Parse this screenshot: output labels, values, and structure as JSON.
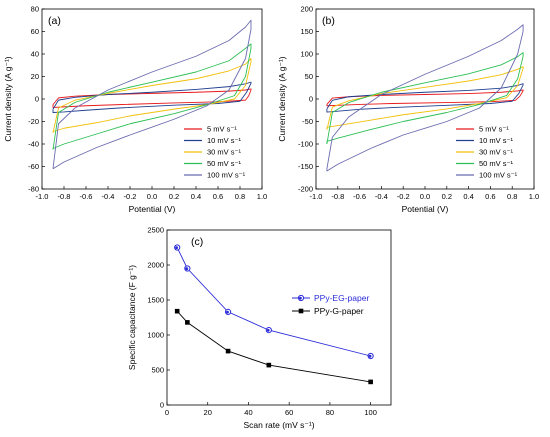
{
  "chart_data": [
    {
      "type": "line",
      "panel_label": "(a)",
      "xlabel": "Potential (V)",
      "ylabel": "Current density (A g⁻¹)",
      "xlim": [
        -1.0,
        1.0
      ],
      "ylim": [
        -80,
        80
      ],
      "xticks": [
        "-1.0",
        "-0.8",
        "-0.6",
        "-0.4",
        "-0.2",
        "0.0",
        "0.2",
        "0.4",
        "0.6",
        "0.8",
        "1.0"
      ],
      "yticks": [
        "-80",
        "-60",
        "-40",
        "-20",
        "0",
        "20",
        "40",
        "60",
        "80"
      ],
      "legend_position": "lower-right",
      "grid": false,
      "series": [
        {
          "name": "5 mV s⁻¹",
          "color": "#e8191b",
          "upper": [
            [
              -0.9,
              -5
            ],
            [
              -0.85,
              1
            ],
            [
              -0.7,
              2.5
            ],
            [
              -0.4,
              4
            ],
            [
              0,
              5
            ],
            [
              0.4,
              6
            ],
            [
              0.7,
              7
            ],
            [
              0.85,
              8
            ],
            [
              0.9,
              9
            ]
          ],
          "lower": [
            [
              0.9,
              8
            ],
            [
              0.88,
              3
            ],
            [
              0.85,
              -1
            ],
            [
              0.6,
              -2.5
            ],
            [
              0.2,
              -3.5
            ],
            [
              -0.3,
              -5
            ],
            [
              -0.6,
              -6
            ],
            [
              -0.8,
              -7
            ],
            [
              -0.9,
              -7.5
            ]
          ]
        },
        {
          "name": "10 mV s⁻¹",
          "color": "#1f3f8f",
          "upper": [
            [
              -0.9,
              -9
            ],
            [
              -0.85,
              -1
            ],
            [
              -0.7,
              1.5
            ],
            [
              -0.4,
              4
            ],
            [
              0,
              6
            ],
            [
              0.4,
              8.5
            ],
            [
              0.7,
              11
            ],
            [
              0.85,
              13.5
            ],
            [
              0.9,
              15
            ]
          ],
          "lower": [
            [
              0.9,
              14
            ],
            [
              0.86,
              6
            ],
            [
              0.8,
              -2
            ],
            [
              0.6,
              -4
            ],
            [
              0.2,
              -5.5
            ],
            [
              -0.3,
              -8
            ],
            [
              -0.6,
              -10
            ],
            [
              -0.8,
              -11.5
            ],
            [
              -0.9,
              -12
            ]
          ]
        },
        {
          "name": "30 mV s⁻¹",
          "color": "#f2c00c",
          "upper": [
            [
              -0.9,
              -30
            ],
            [
              -0.85,
              -8
            ],
            [
              -0.7,
              -1
            ],
            [
              -0.4,
              5
            ],
            [
              0,
              12
            ],
            [
              0.4,
              18
            ],
            [
              0.7,
              25
            ],
            [
              0.85,
              31
            ],
            [
              0.9,
              36
            ]
          ],
          "lower": [
            [
              0.9,
              33
            ],
            [
              0.85,
              12
            ],
            [
              0.75,
              0
            ],
            [
              0.5,
              -5
            ],
            [
              0.2,
              -9
            ],
            [
              -0.2,
              -15
            ],
            [
              -0.5,
              -21
            ],
            [
              -0.8,
              -26
            ],
            [
              -0.9,
              -29
            ]
          ]
        },
        {
          "name": "50 mV s⁻¹",
          "color": "#2dbf55",
          "upper": [
            [
              -0.9,
              -45
            ],
            [
              -0.85,
              -12
            ],
            [
              -0.7,
              -3
            ],
            [
              -0.4,
              6
            ],
            [
              0,
              15
            ],
            [
              0.4,
              24
            ],
            [
              0.7,
              34
            ],
            [
              0.85,
              45
            ],
            [
              0.9,
              49
            ]
          ],
          "lower": [
            [
              0.9,
              45
            ],
            [
              0.85,
              20
            ],
            [
              0.75,
              3
            ],
            [
              0.5,
              -5
            ],
            [
              0.2,
              -13
            ],
            [
              -0.2,
              -22
            ],
            [
              -0.5,
              -31
            ],
            [
              -0.8,
              -40
            ],
            [
              -0.9,
              -44
            ]
          ]
        },
        {
          "name": "100 mV s⁻¹",
          "color": "#6b6bb0",
          "upper": [
            [
              -0.9,
              -62
            ],
            [
              -0.85,
              -22
            ],
            [
              -0.7,
              -8
            ],
            [
              -0.4,
              8
            ],
            [
              0,
              24
            ],
            [
              0.4,
              38
            ],
            [
              0.7,
              52
            ],
            [
              0.85,
              64
            ],
            [
              0.9,
              70
            ]
          ],
          "lower": [
            [
              0.9,
              62
            ],
            [
              0.85,
              36
            ],
            [
              0.7,
              8
            ],
            [
              0.5,
              -6
            ],
            [
              0.2,
              -18
            ],
            [
              -0.2,
              -32
            ],
            [
              -0.5,
              -43
            ],
            [
              -0.8,
              -56
            ],
            [
              -0.9,
              -62
            ]
          ]
        }
      ]
    },
    {
      "type": "line",
      "panel_label": "(b)",
      "xlabel": "Potential (V)",
      "ylabel": "Current density (A g⁻¹)",
      "xlim": [
        -1.0,
        1.0
      ],
      "ylim": [
        -200,
        200
      ],
      "xticks": [
        "-1.0",
        "-0.8",
        "-0.6",
        "-0.4",
        "-0.2",
        "0.0",
        "0.2",
        "0.4",
        "0.6",
        "0.8",
        "1.0"
      ],
      "yticks": [
        "-200",
        "-150",
        "-100",
        "-50",
        "0",
        "50",
        "100",
        "150",
        "200"
      ],
      "legend_position": "lower-right",
      "grid": false,
      "series": [
        {
          "name": "5 mV s⁻¹",
          "color": "#e8191b",
          "upper": [
            [
              -0.9,
              -12
            ],
            [
              -0.85,
              2
            ],
            [
              -0.7,
              5
            ],
            [
              -0.4,
              8
            ],
            [
              0,
              10
            ],
            [
              0.4,
              12
            ],
            [
              0.7,
              15
            ],
            [
              0.85,
              18
            ],
            [
              0.9,
              20
            ]
          ],
          "lower": [
            [
              0.9,
              18
            ],
            [
              0.87,
              6
            ],
            [
              0.83,
              -3
            ],
            [
              0.6,
              -6
            ],
            [
              0.2,
              -8
            ],
            [
              -0.3,
              -10
            ],
            [
              -0.6,
              -12
            ],
            [
              -0.8,
              -14
            ],
            [
              -0.9,
              -15
            ]
          ]
        },
        {
          "name": "10 mV s⁻¹",
          "color": "#1f3f8f",
          "upper": [
            [
              -0.9,
              -22
            ],
            [
              -0.85,
              -3
            ],
            [
              -0.7,
              5
            ],
            [
              -0.4,
              10
            ],
            [
              0,
              15
            ],
            [
              0.4,
              19
            ],
            [
              0.7,
              24
            ],
            [
              0.85,
              30
            ],
            [
              0.9,
              34
            ]
          ],
          "lower": [
            [
              0.9,
              31
            ],
            [
              0.86,
              12
            ],
            [
              0.8,
              -5
            ],
            [
              0.6,
              -10
            ],
            [
              0.2,
              -14
            ],
            [
              -0.3,
              -19
            ],
            [
              -0.6,
              -23
            ],
            [
              -0.8,
              -27
            ],
            [
              -0.9,
              -29
            ]
          ]
        },
        {
          "name": "30 mV s⁻¹",
          "color": "#f2c00c",
          "upper": [
            [
              -0.9,
              -68
            ],
            [
              -0.85,
              -18
            ],
            [
              -0.7,
              -4
            ],
            [
              -0.4,
              12
            ],
            [
              0,
              26
            ],
            [
              0.4,
              40
            ],
            [
              0.7,
              54
            ],
            [
              0.85,
              66
            ],
            [
              0.9,
              72
            ]
          ],
          "lower": [
            [
              0.9,
              68
            ],
            [
              0.85,
              30
            ],
            [
              0.75,
              3
            ],
            [
              0.5,
              -10
            ],
            [
              0.2,
              -22
            ],
            [
              -0.2,
              -35
            ],
            [
              -0.5,
              -47
            ],
            [
              -0.8,
              -59
            ],
            [
              -0.9,
              -63
            ]
          ]
        },
        {
          "name": "50 mV s⁻¹",
          "color": "#2dbf55",
          "upper": [
            [
              -0.9,
              -100
            ],
            [
              -0.85,
              -30
            ],
            [
              -0.7,
              -8
            ],
            [
              -0.4,
              15
            ],
            [
              0,
              36
            ],
            [
              0.4,
              56
            ],
            [
              0.7,
              76
            ],
            [
              0.85,
              94
            ],
            [
              0.9,
              103
            ]
          ],
          "lower": [
            [
              0.9,
              95
            ],
            [
              0.85,
              45
            ],
            [
              0.75,
              8
            ],
            [
              0.5,
              -12
            ],
            [
              0.2,
              -30
            ],
            [
              -0.2,
              -50
            ],
            [
              -0.5,
              -68
            ],
            [
              -0.8,
              -87
            ],
            [
              -0.9,
              -94
            ]
          ]
        },
        {
          "name": "100 mV s⁻¹",
          "color": "#6b6bb0",
          "upper": [
            [
              -0.9,
              -155
            ],
            [
              -0.85,
              -85
            ],
            [
              -0.7,
              -40
            ],
            [
              -0.4,
              10
            ],
            [
              0,
              55
            ],
            [
              0.4,
              95
            ],
            [
              0.7,
              130
            ],
            [
              0.85,
              155
            ],
            [
              0.9,
              165
            ]
          ],
          "lower": [
            [
              0.9,
              150
            ],
            [
              0.85,
              100
            ],
            [
              0.7,
              25
            ],
            [
              0.5,
              -20
            ],
            [
              0.2,
              -50
            ],
            [
              -0.2,
              -80
            ],
            [
              -0.5,
              -110
            ],
            [
              -0.8,
              -145
            ],
            [
              -0.9,
              -160
            ]
          ]
        }
      ]
    },
    {
      "type": "line",
      "panel_label": "(c)",
      "xlabel": "Scan rate (mV s⁻¹)",
      "ylabel": "Specific capacitance (F g⁻¹)",
      "xlim": [
        0,
        110
      ],
      "ylim": [
        0,
        2500
      ],
      "xticks": [
        "0",
        "20",
        "40",
        "60",
        "80",
        "100"
      ],
      "yticks": [
        "0",
        "500",
        "1000",
        "1500",
        "2000",
        "2500"
      ],
      "legend_position": "right",
      "grid": false,
      "x": [
        5,
        10,
        30,
        50,
        100
      ],
      "series": [
        {
          "name": "PPy-EG-paper",
          "color": "#2b2bd9",
          "marker": "circle",
          "values": [
            2250,
            1950,
            1330,
            1070,
            700
          ]
        },
        {
          "name": "PPy-G-paper",
          "color": "#000000",
          "marker": "square",
          "values": [
            1340,
            1180,
            770,
            570,
            330
          ]
        }
      ]
    }
  ]
}
